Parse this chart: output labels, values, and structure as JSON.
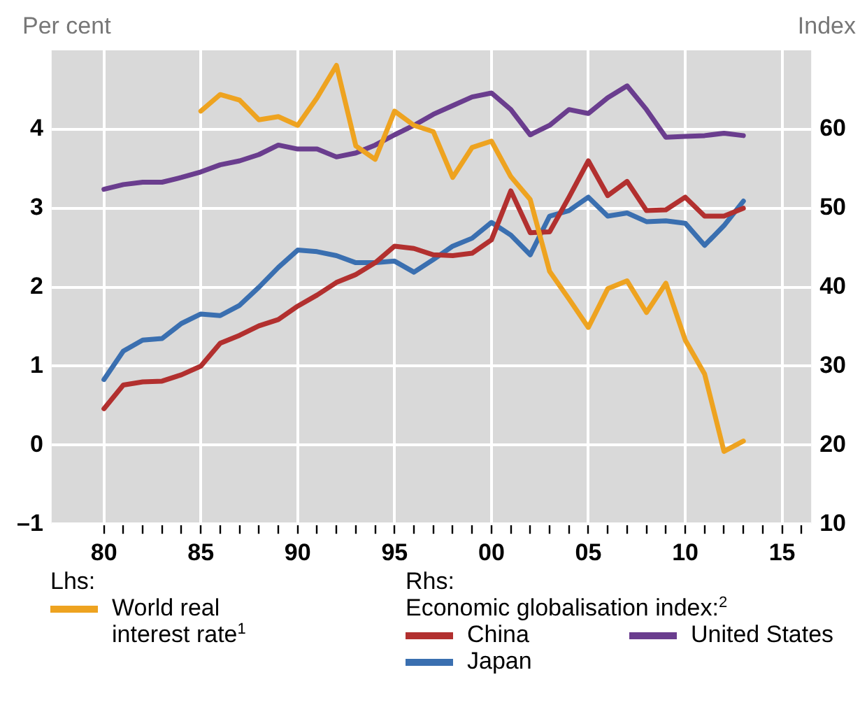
{
  "chart_data": {
    "type": "line",
    "ylabel": "Per cent",
    "y2label": "Index",
    "annotations": [
      "Lhs:",
      "Rhs:",
      "Economic globalisation index:$^{2}$"
    ],
    "x": [
      1980,
      1981,
      1982,
      1983,
      1984,
      1985,
      1986,
      1987,
      1988,
      1989,
      1990,
      1991,
      1992,
      1993,
      1994,
      1995,
      1996,
      1997,
      1998,
      1999,
      2000,
      2001,
      2002,
      2003,
      2004,
      2005,
      2006,
      2007,
      2008,
      2009,
      2010,
      2011,
      2012,
      2013
    ],
    "series": [
      {
        "name": "World real interest rate$^{1}$",
        "color": "#eea320",
        "axis": "y",
        "values": [
          null,
          null,
          null,
          null,
          null,
          4.23,
          4.44,
          4.37,
          4.12,
          4.16,
          4.05,
          4.4,
          4.81,
          3.79,
          3.62,
          4.23,
          4.05,
          3.97,
          3.39,
          3.77,
          3.85,
          3.4,
          3.11,
          2.2,
          1.85,
          1.49,
          1.98,
          2.08,
          1.68,
          2.05,
          1.33,
          0.9,
          -0.08,
          0.05
        ]
      },
      {
        "name": "China",
        "color": "#b2302f",
        "axis": "y2",
        "values": [
          24.6,
          27.6,
          28.0,
          28.1,
          28.9,
          30.0,
          32.9,
          33.9,
          35.1,
          35.9,
          37.6,
          39.0,
          40.6,
          41.6,
          43.1,
          45.2,
          44.9,
          44.1,
          44.0,
          44.3,
          46.0,
          52.2,
          46.9,
          47.0,
          51.4,
          56.0,
          51.6,
          53.4,
          49.7,
          49.8,
          51.4,
          49.0,
          49.0,
          50.0
        ]
      },
      {
        "name": "United States",
        "color": "#6a3d8e",
        "axis": "y2",
        "values": [
          52.4,
          53.0,
          53.3,
          53.3,
          53.9,
          54.6,
          55.5,
          56.0,
          56.8,
          58.0,
          57.5,
          57.5,
          56.5,
          57.0,
          58.0,
          59.3,
          60.5,
          61.9,
          63.0,
          64.1,
          64.6,
          62.5,
          59.3,
          60.5,
          62.5,
          62.0,
          64.0,
          65.5,
          62.5,
          59.0,
          59.1,
          59.2,
          59.5,
          59.2
        ]
      },
      {
        "name": "Japan",
        "color": "#3a6fb0",
        "axis": "y2",
        "values": [
          28.3,
          31.9,
          33.3,
          33.5,
          35.4,
          36.6,
          36.4,
          37.7,
          40.0,
          42.5,
          44.7,
          44.5,
          44.0,
          43.1,
          43.1,
          43.3,
          41.9,
          43.5,
          45.2,
          46.2,
          48.2,
          46.6,
          44.1,
          49.0,
          49.7,
          51.4,
          49.0,
          49.4,
          48.3,
          48.4,
          48.1,
          45.3,
          47.8,
          50.9
        ]
      }
    ],
    "xlim": [
      1977.3,
      2016.5
    ],
    "xticks": [
      {
        "value": 1980,
        "label": "80"
      },
      {
        "value": 1981,
        "label": null
      },
      {
        "value": 1982,
        "label": null
      },
      {
        "value": 1983,
        "label": null
      },
      {
        "value": 1984,
        "label": null
      },
      {
        "value": 1985,
        "label": "85"
      },
      {
        "value": 1986,
        "label": null
      },
      {
        "value": 1987,
        "label": null
      },
      {
        "value": 1988,
        "label": null
      },
      {
        "value": 1989,
        "label": null
      },
      {
        "value": 1990,
        "label": "90"
      },
      {
        "value": 1991,
        "label": null
      },
      {
        "value": 1992,
        "label": null
      },
      {
        "value": 1993,
        "label": null
      },
      {
        "value": 1994,
        "label": null
      },
      {
        "value": 1995,
        "label": "95"
      },
      {
        "value": 1996,
        "label": null
      },
      {
        "value": 1997,
        "label": null
      },
      {
        "value": 1998,
        "label": null
      },
      {
        "value": 1999,
        "label": null
      },
      {
        "value": 2000,
        "label": "00"
      },
      {
        "value": 2001,
        "label": null
      },
      {
        "value": 2002,
        "label": null
      },
      {
        "value": 2003,
        "label": null
      },
      {
        "value": 2004,
        "label": null
      },
      {
        "value": 2005,
        "label": "05"
      },
      {
        "value": 2006,
        "label": null
      },
      {
        "value": 2007,
        "label": null
      },
      {
        "value": 2008,
        "label": null
      },
      {
        "value": 2009,
        "label": null
      },
      {
        "value": 2010,
        "label": "10"
      },
      {
        "value": 2011,
        "label": null
      },
      {
        "value": 2012,
        "label": null
      },
      {
        "value": 2013,
        "label": null
      },
      {
        "value": 2014,
        "label": null
      },
      {
        "value": 2015,
        "label": "15"
      },
      {
        "value": 2016,
        "label": null
      }
    ],
    "ylim": [
      -1,
      5
    ],
    "yticks": [
      {
        "value": -1,
        "label": "–1"
      },
      0,
      1,
      2,
      3,
      4
    ],
    "y2lim": [
      10,
      70
    ],
    "y2ticks": [
      10,
      20,
      30,
      40,
      50,
      60
    ],
    "grid": true,
    "legend": "bottom",
    "marker": "none",
    "line_style": "solid"
  }
}
